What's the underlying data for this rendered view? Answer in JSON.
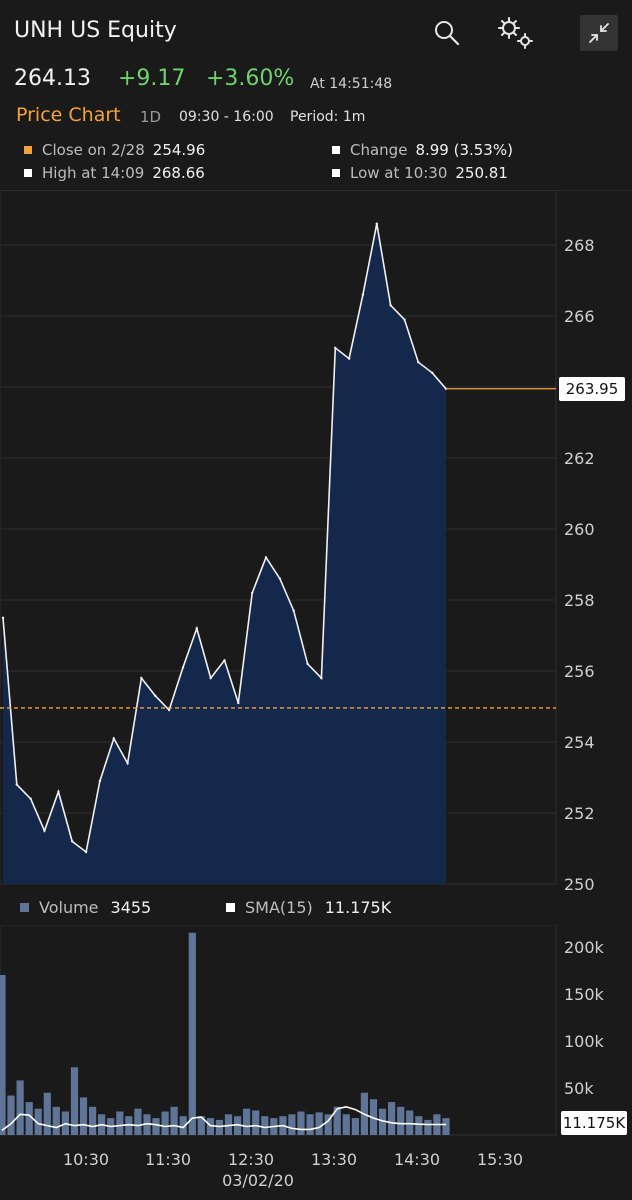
{
  "header": {
    "title": "UNH US Equity",
    "price": "264.13",
    "change": "+9.17",
    "change_pct": "+3.60%",
    "time": "At 14:51:48",
    "icons": [
      "search-icon",
      "gear-icon",
      "collapse-icon"
    ]
  },
  "chart_header": {
    "label": "Price Chart",
    "range": "1D",
    "hours": "09:30 - 16:00",
    "period": "Period: 1m"
  },
  "stats": {
    "close_label": "Close on 2/28",
    "close_value": "254.96",
    "change_label": "Change",
    "change_value": "8.99 (3.53%)",
    "high_label": "High at 14:09",
    "high_value": "268.66",
    "low_label": "Low at 10:30",
    "low_value": "250.81"
  },
  "colors": {
    "accent": "#f5a23b",
    "positive": "#6fd36b",
    "area_fill": "#13284a",
    "volume_bar": "#5f7597",
    "background": "#1a1a1a"
  },
  "volume_legend": {
    "volume_label": "Volume",
    "volume_value": "3455",
    "sma_label": "SMA(15)",
    "sma_value": "11.175K"
  },
  "x_date": "03/02/20",
  "chart_data": [
    {
      "type": "area",
      "y_ticks": [
        "268",
        "266",
        "264",
        "262",
        "260",
        "258",
        "256",
        "254",
        "252",
        "250"
      ],
      "ylim": [
        250,
        269
      ],
      "last_price_tag": "263.95",
      "prev_close": 254.96,
      "x": [
        "09:30",
        "09:40",
        "09:50",
        "10:00",
        "10:10",
        "10:20",
        "10:30",
        "10:40",
        "10:50",
        "11:00",
        "11:10",
        "11:20",
        "11:30",
        "11:40",
        "11:50",
        "12:00",
        "12:10",
        "12:20",
        "12:30",
        "12:40",
        "12:50",
        "13:00",
        "13:10",
        "13:20",
        "13:30",
        "13:40",
        "13:50",
        "14:00",
        "14:10",
        "14:20",
        "14:30",
        "14:40",
        "14:50"
      ],
      "values": [
        257.5,
        252.8,
        252.4,
        251.5,
        252.6,
        251.2,
        250.9,
        252.9,
        254.1,
        253.4,
        255.8,
        255.3,
        254.9,
        256.1,
        257.2,
        255.8,
        256.3,
        255.1,
        258.2,
        259.2,
        258.6,
        257.7,
        256.2,
        255.8,
        265.1,
        264.8,
        266.6,
        268.6,
        266.3,
        265.9,
        264.7,
        264.4,
        263.95
      ]
    },
    {
      "type": "bar",
      "y_ticks": [
        "200k",
        "150k",
        "100k",
        "50k"
      ],
      "ylim": [
        0,
        220000
      ],
      "x_ticks": [
        "10:30",
        "11:30",
        "12:30",
        "13:30",
        "14:30",
        "15:30"
      ],
      "sma_tag": "11.175K",
      "series": [
        {
          "name": "Volume",
          "values": [
            170000,
            42000,
            58000,
            35000,
            28000,
            45000,
            30000,
            25000,
            72000,
            40000,
            30000,
            22000,
            18000,
            25000,
            20000,
            28000,
            22000,
            18000,
            25000,
            30000,
            20000,
            215000,
            20000,
            18000,
            16000,
            22000,
            20000,
            28000,
            26000,
            20000,
            18000,
            20000,
            22000,
            25000,
            22000,
            24000,
            22000,
            30000,
            22000,
            18000,
            45000,
            38000,
            28000,
            35000,
            30000,
            26000,
            20000,
            16000,
            22000,
            18000
          ]
        },
        {
          "name": "SMA(15)",
          "values": [
            5000,
            12000,
            22000,
            21000,
            12000,
            10000,
            8000,
            12000,
            10000,
            11000,
            9000,
            11000,
            9000,
            10000,
            11000,
            10000,
            12000,
            11000,
            9000,
            10000,
            8000,
            18000,
            19000,
            10000,
            9000,
            10000,
            11000,
            9000,
            10000,
            8000,
            9000,
            10000,
            7000,
            6000,
            6000,
            8000,
            15000,
            28000,
            30000,
            27000,
            22000,
            18000,
            15000,
            13000,
            12000,
            12000,
            11500,
            11200,
            11175,
            11175
          ]
        }
      ]
    }
  ]
}
